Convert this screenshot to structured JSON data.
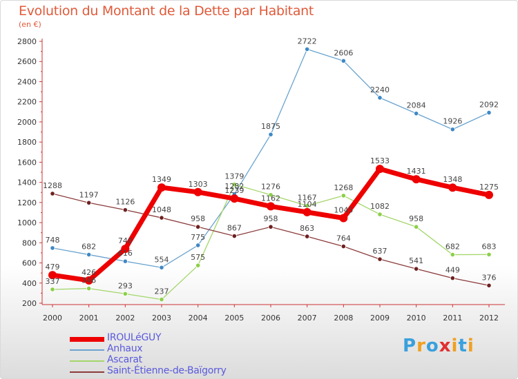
{
  "title": "Evolution du Montant de la Dette par Habitant",
  "subtitle": "(en €)",
  "logo": {
    "letters": [
      "P",
      "r",
      "o",
      "x",
      "i",
      "t",
      "i"
    ],
    "colors": [
      "#3aa0dc",
      "#f0a020",
      "#3aa0dc",
      "#e03030",
      "#f0a020",
      "#3aa0dc",
      "#f0a020"
    ]
  },
  "chart_data": {
    "type": "line",
    "x": [
      "2000",
      "2001",
      "2002",
      "2003",
      "2004",
      "2005",
      "2006",
      "2007",
      "2008",
      "2009",
      "2010",
      "2011",
      "2012"
    ],
    "ylim": [
      200,
      2800
    ],
    "yticks": [
      200,
      400,
      600,
      800,
      1000,
      1200,
      1400,
      1600,
      1800,
      2000,
      2200,
      2400,
      2600,
      2800
    ],
    "grid": false,
    "legend": "bottom-left",
    "series": [
      {
        "name": "Anhaux",
        "color": "#6aa3cf",
        "marker": "#3f88c5",
        "width": 1.3,
        "values": [
          748,
          682,
          616,
          554,
          775,
          1282,
          1875,
          2722,
          2606,
          2240,
          2084,
          1926,
          2092
        ]
      },
      {
        "name": "Ascarat",
        "color": "#a3d66a",
        "marker": "#8cd048",
        "width": 1.3,
        "values": [
          337,
          346,
          293,
          237,
          575,
          1379,
          1276,
          1167,
          1268,
          1082,
          958,
          682,
          683
        ]
      },
      {
        "name": "Saint-Étienne-de-Baïgorry",
        "color": "#8b3a3a",
        "marker": "#6e2020",
        "width": 1.3,
        "values": [
          1288,
          1197,
          1126,
          1048,
          958,
          867,
          958,
          863,
          764,
          637,
          541,
          449,
          376
        ]
      },
      {
        "name": "IROULéGUY",
        "color": "#ee0000",
        "marker": "#ee0000",
        "width": 7,
        "values": [
          479,
          426,
          740,
          1349,
          1303,
          1239,
          1162,
          1104,
          1045,
          1533,
          1431,
          1348,
          1275
        ]
      }
    ],
    "label_texts": {
      "Anhaux": [
        "748",
        "682",
        "616",
        "554",
        "775",
        "1282",
        "1875",
        "2722",
        "2606",
        "2240",
        "2084",
        "1926",
        "2092"
      ],
      "Ascarat": [
        "337",
        "346",
        "293",
        "237",
        "575",
        "1379",
        "1276",
        "1167",
        "1268",
        "1082",
        "958",
        "682",
        "683"
      ],
      "Saint-Étienne-de-Baïgorry": [
        "1288",
        "1197",
        "1126",
        "1048",
        "958",
        "867",
        "958",
        "863",
        "764",
        "637",
        "541",
        "449",
        "376"
      ],
      "IROULéGUY": [
        "479",
        "426",
        "740",
        "1349",
        "1303",
        "1239",
        "1162",
        "1104",
        "1045",
        "1533",
        "1431",
        "1348",
        "1275"
      ]
    },
    "legend_order": [
      "IROULéGUY",
      "Anhaux",
      "Ascarat",
      "Saint-Étienne-de-Baïgorry"
    ]
  }
}
